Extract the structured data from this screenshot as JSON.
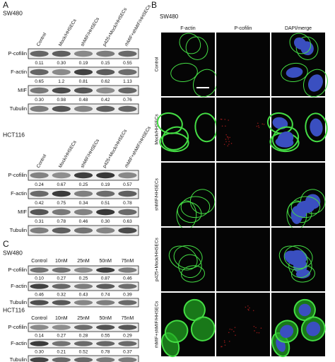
{
  "panel_a": {
    "label": "A",
    "blots": [
      {
        "cell_line": "SW480",
        "columns": [
          "Control",
          "Mock/HHSECs",
          "shMIF/HHSECs",
          "p425+Mock/HHSECs",
          "rhMIF+shMIF/HHSECs"
        ],
        "rows": [
          {
            "label": "P-cofilin",
            "values": [
              "0.11",
              "0.30",
              "0.19",
              "0.15",
              "0.55"
            ]
          },
          {
            "label": "F-actin",
            "values": [
              "0.65",
              "1.2",
              "0.81",
              "0.62",
              "1.13"
            ]
          },
          {
            "label": "MIF",
            "values": [
              "0.30",
              "0.98",
              "0.48",
              "0.42",
              "0.76"
            ]
          },
          {
            "label": "Tubulin"
          }
        ]
      },
      {
        "cell_line": "HCT116",
        "columns": [
          "Control",
          "Mock/HHSECs",
          "shMIF/HHSECs",
          "p425+Mock/HHSECs",
          "rhMIF+shMIF/HHSECs"
        ],
        "rows": [
          {
            "label": "P-cofilin",
            "values": [
              "0.24",
              "0.67",
              "0.25",
              "0.19",
              "0.57"
            ]
          },
          {
            "label": "F-actin",
            "values": [
              "0.42",
              "0.75",
              "0.34",
              "0.51",
              "0.78"
            ]
          },
          {
            "label": "MIF",
            "values": [
              "0.31",
              "0.78",
              "0.46",
              "0.30",
              "0.63"
            ]
          },
          {
            "label": "Tubulin"
          }
        ]
      }
    ]
  },
  "panel_b": {
    "label": "B",
    "cell_line": "SW480",
    "columns": [
      "F-actin",
      "P-cofilin",
      "DAPI/merge"
    ],
    "rows": [
      "Control",
      "Mock/HHSECs",
      "shMIF/HHSECs",
      "p425+Mock/HHSECs",
      "rhMIF+shMIF/HHSECs"
    ]
  },
  "panel_c": {
    "label": "C",
    "blots": [
      {
        "cell_line": "SW480",
        "columns": [
          "Control",
          "10nM",
          "25nM",
          "50nM",
          "75nM"
        ],
        "rows": [
          {
            "label": "P-cofilin",
            "values": [
              "0.10",
              "0.27",
              "0.25",
              "0.87",
              "0.46"
            ]
          },
          {
            "label": "F-actin",
            "values": [
              "0.46",
              "0.32",
              "0.43",
              "0.74",
              "0.39"
            ]
          },
          {
            "label": "Tubulin"
          }
        ]
      },
      {
        "cell_line": "HCT116",
        "columns": [
          "Control",
          "10nM",
          "25nM",
          "50nM",
          "75nM"
        ],
        "rows": [
          {
            "label": "P-cofilin",
            "values": [
              "0.14",
              "0.27",
              "0.28",
              "0.55",
              "0.29"
            ]
          },
          {
            "label": "F-actin",
            "values": [
              "0.30",
              "0.21",
              "0.52",
              "0.78",
              "0.37"
            ]
          },
          {
            "label": "Tubulin"
          }
        ]
      }
    ]
  }
}
